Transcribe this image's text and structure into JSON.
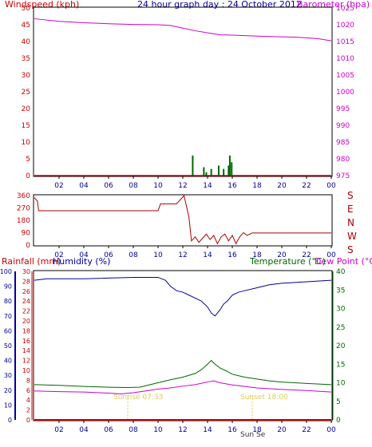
{
  "colors": {
    "frame": "#000000",
    "wind_axis": "#cc0000",
    "baro_axis": "#cc00cc",
    "title": "#000099",
    "humidity": "#000099",
    "temp": "#006600",
    "dew": "#cc00cc",
    "rain": "#cc0000",
    "wind_gust": "#006600",
    "wind_avg": "#cc0000",
    "direction": "#aa0000",
    "sun_marker": "#ddcc55"
  },
  "header": {
    "wind_label": "Windspeed (kph)",
    "title": "24 hour graph day : 24 October 2012",
    "baro_label": "Barometer (hpa)"
  },
  "panel2": {
    "compass": [
      "S",
      "E",
      "N",
      "W",
      "S"
    ]
  },
  "panel3_header": {
    "rain_label": "Rainfall (mm)",
    "humidity_label": "Humidity (%)",
    "temp_label": "Temperature (°C)",
    "dew_label": "Dew Point (°C)"
  },
  "sun_labels": {
    "sunrise": "Sunrise 07:33",
    "sunset": "Sunset 18:00",
    "overlap": "Sun Se"
  },
  "chart_data": [
    {
      "type": "line",
      "title": "24 hour graph day : 24 October 2012",
      "xlabel": "",
      "x_ticks": [
        "02",
        "04",
        "06",
        "08",
        "10",
        "12",
        "14",
        "16",
        "18",
        "20",
        "22",
        "00"
      ],
      "y_left": {
        "label": "Windspeed (kph)",
        "ticks": [
          0,
          5,
          10,
          15,
          20,
          25,
          30,
          35,
          40,
          45,
          50
        ],
        "range": [
          0,
          50
        ]
      },
      "y_right": {
        "label": "Barometer (hpa)",
        "ticks": [
          975,
          980,
          985,
          990,
          995,
          1000,
          1005,
          1010,
          1015,
          1020,
          1025
        ],
        "range": [
          975,
          1025
        ]
      },
      "series": [
        {
          "name": "Barometer (hpa)",
          "axis": "right",
          "points": [
            [
              0,
              1021.8
            ],
            [
              2,
              1021.0
            ],
            [
              4,
              1020.6
            ],
            [
              6,
              1020.3
            ],
            [
              8,
              1020.1
            ],
            [
              10,
              1020.0
            ],
            [
              11,
              1019.8
            ],
            [
              12,
              1019.0
            ],
            [
              13,
              1018.2
            ],
            [
              14,
              1017.6
            ],
            [
              15,
              1017.0
            ],
            [
              16,
              1016.9
            ],
            [
              18,
              1016.6
            ],
            [
              20,
              1016.4
            ],
            [
              21,
              1016.3
            ],
            [
              22,
              1016.1
            ],
            [
              23,
              1015.8
            ],
            [
              24,
              1015.2
            ]
          ]
        },
        {
          "name": "Windspeed (kph)",
          "axis": "left",
          "type": "bar",
          "points": [
            [
              12.8,
              6
            ],
            [
              13.7,
              2.5
            ],
            [
              13.9,
              1
            ],
            [
              14.3,
              2
            ],
            [
              14.9,
              3
            ],
            [
              15.3,
              2
            ],
            [
              15.7,
              3
            ],
            [
              15.8,
              6
            ],
            [
              15.95,
              4
            ]
          ]
        }
      ]
    },
    {
      "type": "line",
      "x_ticks": [
        "02",
        "04",
        "06",
        "08",
        "10",
        "12",
        "14",
        "16",
        "18",
        "20",
        "22",
        "00"
      ],
      "y_left": {
        "ticks": [
          0,
          90,
          180,
          270,
          360
        ],
        "range": [
          0,
          360
        ]
      },
      "y_right_labels": [
        "S",
        "E",
        "N",
        "W",
        "S"
      ],
      "series": [
        {
          "name": "",
          "points": [
            [
              0,
              345
            ],
            [
              0.25,
              320
            ],
            [
              0.35,
              250
            ],
            [
              10,
              250
            ],
            [
              10.2,
              300
            ],
            [
              11.5,
              300
            ],
            [
              12.1,
              360
            ],
            [
              12.5,
              200
            ],
            [
              12.7,
              30
            ],
            [
              13,
              60
            ],
            [
              13.3,
              20
            ],
            [
              13.6,
              50
            ],
            [
              13.9,
              80
            ],
            [
              14.2,
              40
            ],
            [
              14.5,
              70
            ],
            [
              14.8,
              10
            ],
            [
              15.1,
              60
            ],
            [
              15.4,
              80
            ],
            [
              15.7,
              30
            ],
            [
              16,
              70
            ],
            [
              16.3,
              10
            ],
            [
              16.6,
              60
            ],
            [
              16.9,
              90
            ],
            [
              17.2,
              70
            ],
            [
              17.6,
              88
            ],
            [
              24,
              88
            ]
          ]
        }
      ]
    },
    {
      "type": "line",
      "x_ticks": [
        "02",
        "04",
        "06",
        "08",
        "10",
        "12",
        "14",
        "16",
        "18",
        "20",
        "22",
        "00"
      ],
      "y_left_humidity": {
        "label": "Humidity (%)",
        "ticks": [
          0,
          10,
          20,
          30,
          40,
          50,
          60,
          70,
          80,
          90,
          100
        ],
        "range": [
          0,
          100
        ]
      },
      "y_left_rain": {
        "label": "Rainfall (mm)",
        "ticks": [
          0,
          2,
          4,
          6,
          8,
          10,
          12,
          14,
          16,
          18,
          20,
          22,
          24,
          26,
          28,
          30
        ],
        "range": [
          0,
          30
        ]
      },
      "y_right": {
        "label": "Temperature (°C)",
        "ticks": [
          0,
          5,
          10,
          15,
          20,
          25,
          30,
          35,
          40
        ],
        "range": [
          0,
          40
        ]
      },
      "series": [
        {
          "name": "Humidity (%)",
          "axis": "humidity",
          "points": [
            [
              0,
              94
            ],
            [
              1,
              95
            ],
            [
              4,
              95
            ],
            [
              8,
              96
            ],
            [
              10,
              96
            ],
            [
              10.6,
              94
            ],
            [
              11,
              90
            ],
            [
              11.5,
              87
            ],
            [
              12,
              86
            ],
            [
              12.5,
              84
            ],
            [
              13,
              82
            ],
            [
              13.5,
              80
            ],
            [
              14,
              76
            ],
            [
              14.3,
              72
            ],
            [
              14.6,
              70
            ],
            [
              15,
              74
            ],
            [
              15.3,
              78
            ],
            [
              15.6,
              80
            ],
            [
              16,
              84
            ],
            [
              16.5,
              86
            ],
            [
              17,
              87
            ],
            [
              18,
              89
            ],
            [
              19,
              91
            ],
            [
              20,
              92
            ],
            [
              22,
              93
            ],
            [
              24,
              94
            ]
          ]
        },
        {
          "name": "Temperature (°C)",
          "axis": "temp",
          "points": [
            [
              0,
              9.5
            ],
            [
              2,
              9.3
            ],
            [
              4,
              9.0
            ],
            [
              6,
              8.8
            ],
            [
              7.5,
              8.7
            ],
            [
              8.5,
              8.8
            ],
            [
              9,
              9.2
            ],
            [
              10,
              10
            ],
            [
              11,
              10.8
            ],
            [
              12,
              11.5
            ],
            [
              13,
              12.5
            ],
            [
              13.5,
              13.5
            ],
            [
              14,
              15
            ],
            [
              14.3,
              16
            ],
            [
              14.6,
              15
            ],
            [
              15,
              14
            ],
            [
              15.5,
              13.2
            ],
            [
              16,
              12.3
            ],
            [
              17,
              11.5
            ],
            [
              18,
              11
            ],
            [
              19,
              10.5
            ],
            [
              20,
              10.2
            ],
            [
              22,
              9.8
            ],
            [
              24,
              9.5
            ]
          ]
        },
        {
          "name": "Dew Point (°C)",
          "axis": "temp",
          "points": [
            [
              0,
              7.8
            ],
            [
              2,
              7.6
            ],
            [
              4,
              7.5
            ],
            [
              6,
              7.2
            ],
            [
              7,
              7.0
            ],
            [
              8,
              7.3
            ],
            [
              9,
              7.8
            ],
            [
              10,
              8.3
            ],
            [
              11,
              8.6
            ],
            [
              12,
              9.1
            ],
            [
              13,
              9.5
            ],
            [
              14,
              10.2
            ],
            [
              14.5,
              10.5
            ],
            [
              15,
              10
            ],
            [
              16,
              9.4
            ],
            [
              17,
              9
            ],
            [
              18,
              8.6
            ],
            [
              20,
              8.2
            ],
            [
              22,
              7.9
            ],
            [
              24,
              7.5
            ]
          ]
        },
        {
          "name": "Rainfall (mm)",
          "axis": "rain",
          "points": [
            [
              0,
              0
            ],
            [
              24,
              0
            ]
          ]
        }
      ]
    }
  ]
}
